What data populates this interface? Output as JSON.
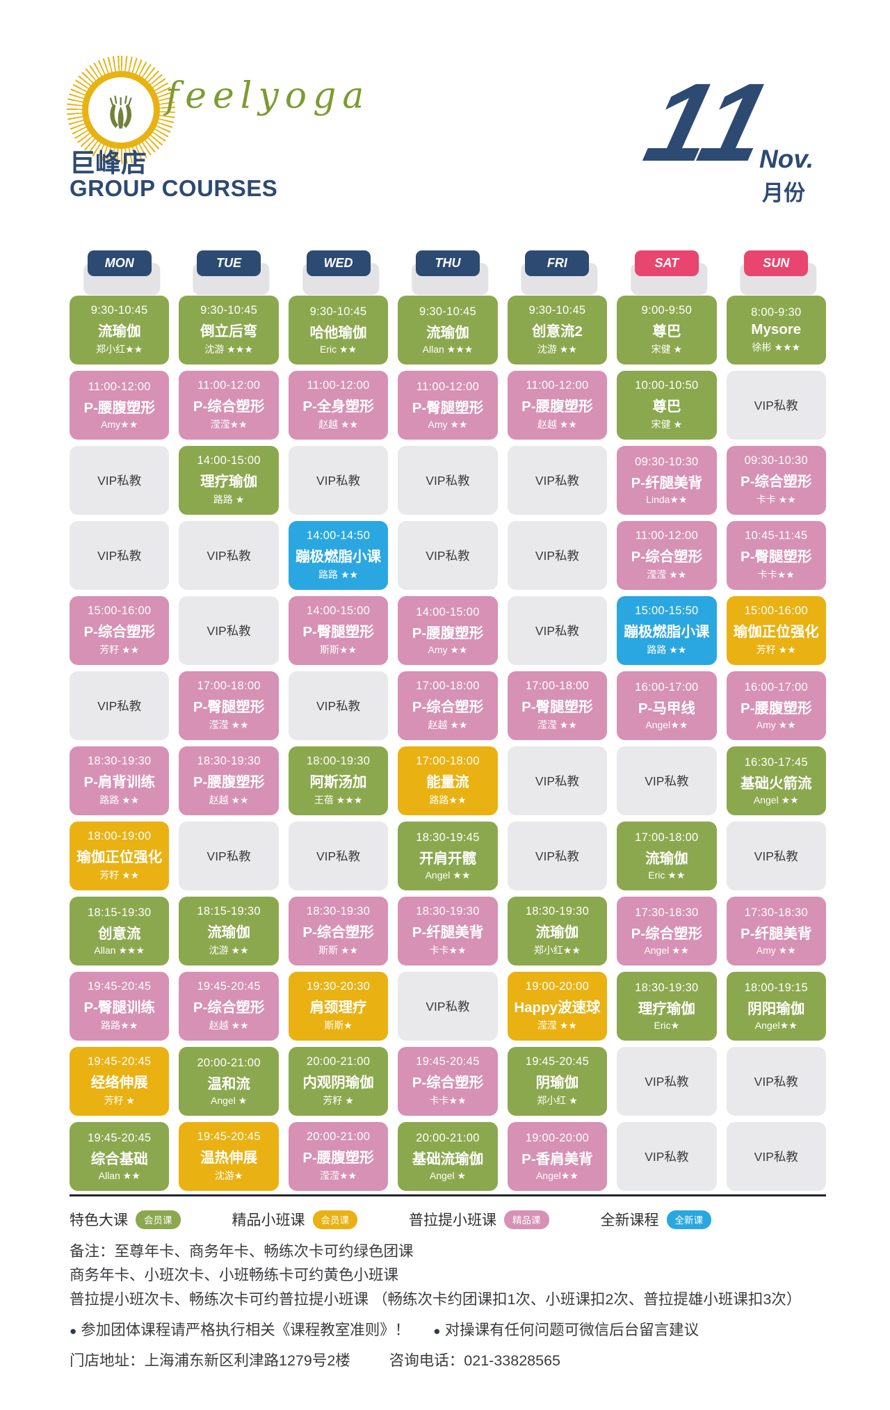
{
  "header": {
    "brand": "feelyoga",
    "store": "巨峰店",
    "subtitle": "GROUP COURSES",
    "month_number": "11",
    "month_en": "Nov.",
    "month_cn": "月份"
  },
  "colors": {
    "green": "#8ba84e",
    "pink": "#d691b4",
    "blue": "#2aa7e0",
    "yellow": "#e9b112",
    "vip": "#e9e9eb",
    "weekday": "#2c4a72",
    "weekend": "#e8456f",
    "navy": "#2c4a72",
    "brand_green": "#7d9b31",
    "logo_yellow": "#e8b211"
  },
  "days": [
    {
      "label": "MON",
      "type": "weekday"
    },
    {
      "label": "TUE",
      "type": "weekday"
    },
    {
      "label": "WED",
      "type": "weekday"
    },
    {
      "label": "THU",
      "type": "weekday"
    },
    {
      "label": "FRI",
      "type": "weekday"
    },
    {
      "label": "SAT",
      "type": "weekend"
    },
    {
      "label": "SUN",
      "type": "weekend"
    }
  ],
  "vip_label": "VIP私教",
  "schedule": [
    [
      {
        "type": "green",
        "time": "9:30-10:45",
        "title": "流瑜伽",
        "teacher": "郑小红★★"
      },
      {
        "type": "green",
        "time": "9:30-10:45",
        "title": "倒立后弯",
        "teacher": "沈游 ★★★"
      },
      {
        "type": "green",
        "time": "9:30-10:45",
        "title": "哈他瑜伽",
        "teacher": "Eric ★★"
      },
      {
        "type": "green",
        "time": "9:30-10:45",
        "title": "流瑜伽",
        "teacher": "Allan ★★★"
      },
      {
        "type": "green",
        "time": "9:30-10:45",
        "title": "创意流2",
        "teacher": "沈游 ★★"
      },
      {
        "type": "green",
        "time": "9:00-9:50",
        "title": "尊巴",
        "teacher": "宋健 ★"
      },
      {
        "type": "green",
        "time": "8:00-9:30",
        "title": "Mysore",
        "teacher": "徐彬 ★★★"
      }
    ],
    [
      {
        "type": "pink",
        "time": "11:00-12:00",
        "title": "P-腰腹塑形",
        "teacher": "Amy★★"
      },
      {
        "type": "pink",
        "time": "11:00-12:00",
        "title": "P-综合塑形",
        "teacher": "滢滢★★"
      },
      {
        "type": "pink",
        "time": "11:00-12:00",
        "title": "P-全身塑形",
        "teacher": "赵越 ★★"
      },
      {
        "type": "pink",
        "time": "11:00-12:00",
        "title": "P-臀腿塑形",
        "teacher": "Amy ★★"
      },
      {
        "type": "pink",
        "time": "11:00-12:00",
        "title": "P-腰腹塑形",
        "teacher": "赵越 ★★"
      },
      {
        "type": "green",
        "time": "10:00-10:50",
        "title": "尊巴",
        "teacher": "宋健 ★"
      },
      {
        "type": "vip"
      }
    ],
    [
      {
        "type": "vip"
      },
      {
        "type": "green",
        "time": "14:00-15:00",
        "title": "理疗瑜伽",
        "teacher": "路路 ★"
      },
      {
        "type": "vip"
      },
      {
        "type": "vip"
      },
      {
        "type": "vip"
      },
      {
        "type": "pink",
        "time": "09:30-10:30",
        "title": "P-纤腿美背",
        "teacher": "Linda★★"
      },
      {
        "type": "pink",
        "time": "09:30-10:30",
        "title": "P-综合塑形",
        "teacher": "卡卡 ★★"
      }
    ],
    [
      {
        "type": "vip"
      },
      {
        "type": "vip"
      },
      {
        "type": "blue",
        "time": "14:00-14:50",
        "title": "蹦极燃脂小课",
        "teacher": "路路 ★★"
      },
      {
        "type": "vip"
      },
      {
        "type": "vip"
      },
      {
        "type": "pink",
        "time": "11:00-12:00",
        "title": "P-综合塑形",
        "teacher": "滢滢 ★★"
      },
      {
        "type": "pink",
        "time": "10:45-11:45",
        "title": "P-臀腿塑形",
        "teacher": "卡卡★★"
      }
    ],
    [
      {
        "type": "pink",
        "time": "15:00-16:00",
        "title": "P-综合塑形",
        "teacher": "芳籽 ★★"
      },
      {
        "type": "vip"
      },
      {
        "type": "pink",
        "time": "14:00-15:00",
        "title": "P-臀腿塑形",
        "teacher": "斯斯★★"
      },
      {
        "type": "pink",
        "time": "14:00-15:00",
        "title": "P-腰腹塑形",
        "teacher": "Amy ★★"
      },
      {
        "type": "vip"
      },
      {
        "type": "blue",
        "time": "15:00-15:50",
        "title": "蹦极燃脂小课",
        "teacher": "路路 ★★"
      },
      {
        "type": "yellow",
        "time": "15:00-16:00",
        "title": "瑜伽正位强化",
        "teacher": "芳籽 ★★"
      }
    ],
    [
      {
        "type": "vip"
      },
      {
        "type": "pink",
        "time": "17:00-18:00",
        "title": "P-臀腿塑形",
        "teacher": "滢滢 ★★"
      },
      {
        "type": "vip"
      },
      {
        "type": "pink",
        "time": "17:00-18:00",
        "title": "P-综合塑形",
        "teacher": "赵越 ★★"
      },
      {
        "type": "pink",
        "time": "17:00-18:00",
        "title": "P-臀腿塑形",
        "teacher": "滢滢 ★★"
      },
      {
        "type": "pink",
        "time": "16:00-17:00",
        "title": "P-马甲线",
        "teacher": "Angel★★"
      },
      {
        "type": "pink",
        "time": "16:00-17:00",
        "title": "P-腰腹塑形",
        "teacher": "Amy ★★"
      }
    ],
    [
      {
        "type": "pink",
        "time": "18:30-19:30",
        "title": "P-肩背训练",
        "teacher": "路路 ★★"
      },
      {
        "type": "pink",
        "time": "18:30-19:30",
        "title": "P-腰腹塑形",
        "teacher": "赵越 ★★"
      },
      {
        "type": "green",
        "time": "18:00-19:30",
        "title": "阿斯汤加",
        "teacher": "王蓓 ★★★"
      },
      {
        "type": "yellow",
        "time": "17:00-18:00",
        "title": "能量流",
        "teacher": "路路★★"
      },
      {
        "type": "vip"
      },
      {
        "type": "vip"
      },
      {
        "type": "green",
        "time": "16:30-17:45",
        "title": "基础火箭流",
        "teacher": "Angel ★★"
      }
    ],
    [
      {
        "type": "yellow",
        "time": "18:00-19:00",
        "title": "瑜伽正位强化",
        "teacher": "芳籽 ★★"
      },
      {
        "type": "vip"
      },
      {
        "type": "vip"
      },
      {
        "type": "green",
        "time": "18:30-19:45",
        "title": "开肩开髋",
        "teacher": "Angel ★★"
      },
      {
        "type": "vip"
      },
      {
        "type": "green",
        "time": "17:00-18:00",
        "title": "流瑜伽",
        "teacher": "Eric ★★"
      },
      {
        "type": "vip"
      }
    ],
    [
      {
        "type": "green",
        "time": "18:15-19:30",
        "title": "创意流",
        "teacher": "Allan ★★★"
      },
      {
        "type": "green",
        "time": "18:15-19:30",
        "title": "流瑜伽",
        "teacher": "沈游 ★★"
      },
      {
        "type": "pink",
        "time": "18:30-19:30",
        "title": "P-综合塑形",
        "teacher": "斯斯 ★★"
      },
      {
        "type": "pink",
        "time": "18:30-19:30",
        "title": "P-纤腿美背",
        "teacher": "卡卡★★"
      },
      {
        "type": "green",
        "time": "18:30-19:30",
        "title": "流瑜伽",
        "teacher": "郑小红★★"
      },
      {
        "type": "pink",
        "time": "17:30-18:30",
        "title": "P-综合塑形",
        "teacher": "Angel ★★"
      },
      {
        "type": "pink",
        "time": "17:30-18:30",
        "title": "P-纤腿美背",
        "teacher": "Amy ★★"
      }
    ],
    [
      {
        "type": "pink",
        "time": "19:45-20:45",
        "title": "P-臀腿训练",
        "teacher": "路路★★"
      },
      {
        "type": "pink",
        "time": "19:45-20:45",
        "title": "P-综合塑形",
        "teacher": "赵越 ★★"
      },
      {
        "type": "yellow",
        "time": "19:30-20:30",
        "title": "肩颈理疗",
        "teacher": "斯斯★"
      },
      {
        "type": "vip"
      },
      {
        "type": "yellow",
        "time": "19:00-20:00",
        "title": "Happy波速球",
        "teacher": "滢滢 ★★"
      },
      {
        "type": "green",
        "time": "18:30-19:30",
        "title": "理疗瑜伽",
        "teacher": "Eric★"
      },
      {
        "type": "green",
        "time": "18:00-19:15",
        "title": "阴阳瑜伽",
        "teacher": "Angel★★"
      }
    ],
    [
      {
        "type": "yellow",
        "time": "19:45-20:45",
        "title": "经络伸展",
        "teacher": "芳籽 ★"
      },
      {
        "type": "green",
        "time": "20:00-21:00",
        "title": "温和流",
        "teacher": "Angel ★"
      },
      {
        "type": "green",
        "time": "20:00-21:00",
        "title": "内观阴瑜伽",
        "teacher": "芳籽 ★"
      },
      {
        "type": "pink",
        "time": "19:45-20:45",
        "title": "P-综合塑形",
        "teacher": "卡卡★★"
      },
      {
        "type": "green",
        "time": "19:45-20:45",
        "title": "阴瑜伽",
        "teacher": "郑小红 ★"
      },
      {
        "type": "vip"
      },
      {
        "type": "vip"
      }
    ],
    [
      {
        "type": "green",
        "time": "19:45-20:45",
        "title": "综合基础",
        "teacher": "Allan ★★"
      },
      {
        "type": "yellow",
        "time": "19:45-20:45",
        "title": "温热伸展",
        "teacher": "沈游★"
      },
      {
        "type": "pink",
        "time": "20:00-21:00",
        "title": "P-腰腹塑形",
        "teacher": "滢滢★★"
      },
      {
        "type": "green",
        "time": "20:00-21:00",
        "title": "基础流瑜伽",
        "teacher": "Angel ★"
      },
      {
        "type": "pink",
        "time": "19:00-20:00",
        "title": "P-香肩美背",
        "teacher": "Angel★★"
      },
      {
        "type": "vip"
      },
      {
        "type": "vip"
      }
    ]
  ],
  "legend": [
    {
      "label": "特色大课",
      "badge": "会员课",
      "color": "green"
    },
    {
      "label": "精品小班课",
      "badge": "会员课",
      "color": "yellow"
    },
    {
      "label": "普拉提小班课",
      "badge": "精品课",
      "color": "pink"
    },
    {
      "label": "全新课程",
      "badge": "全新课",
      "color": "blue"
    }
  ],
  "notes": {
    "line1": "备注：至尊年卡、商务年卡、畅练次卡可约绿色团课",
    "line2": "商务年卡、小班次卡、小班畅练卡可约黄色小班课",
    "line3": "普拉提小班次卡、畅练次卡可约普拉提小班课 （畅练次卡约团课扣1次、小班课扣2次、普拉提雄小班课扣3次）",
    "bullets": [
      "参加团体课程请严格执行相关《课程教室准则》！",
      "对操课有任何问题可微信后台留言建议"
    ],
    "address": "门店地址：上海浦东新区利津路1279号2楼",
    "phone": "咨询电话：021-33828565"
  }
}
